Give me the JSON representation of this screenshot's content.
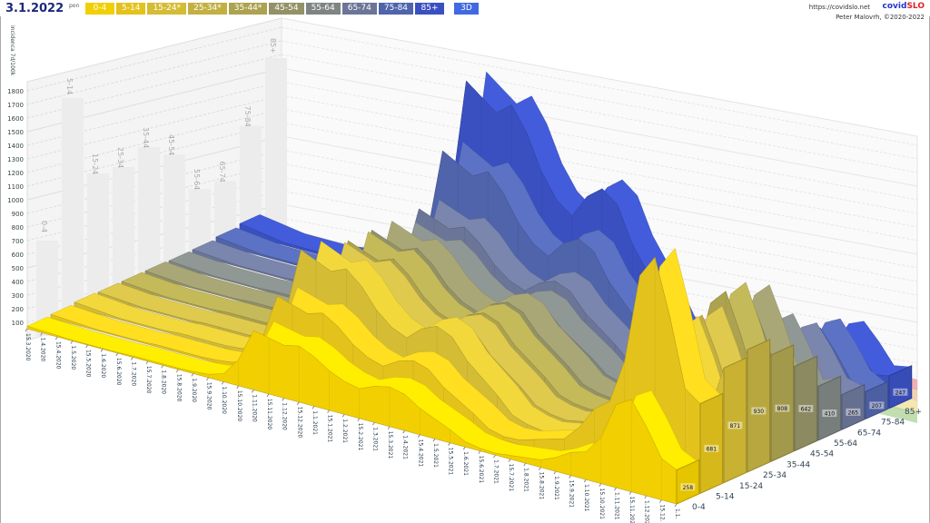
{
  "header": {
    "date": "3.1.2022",
    "day": "pon",
    "url": "https://covidslo.net",
    "brand_a": "covid",
    "brand_b": "SLO",
    "author": "Peter Malovrh, ©2020-2022",
    "mode_button": "3D"
  },
  "legend": [
    {
      "label": "0-4",
      "color": "#f2cf00"
    },
    {
      "label": "5-14",
      "color": "#e3c21c"
    },
    {
      "label": "15-24*",
      "color": "#d4bc34"
    },
    {
      "label": "25-34*",
      "color": "#c2b043"
    },
    {
      "label": "35-44*",
      "color": "#aca24f"
    },
    {
      "label": "45-54",
      "color": "#939267"
    },
    {
      "label": "55-64",
      "color": "#7e8582"
    },
    {
      "label": "65-74",
      "color": "#6b7598"
    },
    {
      "label": "75-84",
      "color": "#5064ab"
    },
    {
      "label": "85+",
      "color": "#3a50c0"
    }
  ],
  "chart_data": {
    "type": "area",
    "ylabel": "incidenca 7d/100k",
    "ylim": [
      0,
      1800
    ],
    "yticks": [
      100,
      200,
      300,
      400,
      500,
      600,
      700,
      800,
      900,
      1000,
      1100,
      1200,
      1300,
      1400,
      1500,
      1600,
      1700,
      1800
    ],
    "x": [
      "15.3.2020",
      "1.4.2020",
      "15.4.2020",
      "1.5.2020",
      "15.5.2020",
      "1.6.2020",
      "15.6.2020",
      "1.7.2020",
      "15.7.2020",
      "1.8.2020",
      "15.8.2020",
      "1.9.2020",
      "15.9.2020",
      "1.10.2020",
      "15.10.2020",
      "1.11.2020",
      "15.11.2020",
      "1.12.2020",
      "15.12.2020",
      "1.1.2021",
      "15.1.2021",
      "1.2.2021",
      "15.2.2021",
      "1.3.2021",
      "15.3.2021",
      "1.4.2021",
      "15.4.2021",
      "1.5.2021",
      "15.5.2021",
      "1.6.2021",
      "15.6.2021",
      "1.7.2021",
      "15.7.2021",
      "1.8.2021",
      "15.8.2021",
      "1.9.2021",
      "15.9.2021",
      "1.10.2021",
      "15.10.2021",
      "1.11.2021",
      "15.11.2021",
      "1.12.2021",
      "15.12.",
      "1.1."
    ],
    "series": [
      {
        "name": "0-4",
        "values": [
          20,
          15,
          10,
          5,
          5,
          5,
          5,
          10,
          10,
          10,
          10,
          15,
          25,
          60,
          200,
          450,
          425,
          400,
          425,
          375,
          300,
          250,
          225,
          275,
          300,
          275,
          200,
          150,
          100,
          40,
          20,
          14,
          28,
          42,
          56,
          105,
          175,
          210,
          350,
          630,
          700,
          525,
          315,
          258
        ]
      },
      {
        "name": "5-14",
        "values": [
          28,
          21,
          14,
          7,
          7,
          7,
          7,
          14,
          14,
          14,
          14,
          21,
          35,
          84,
          280,
          630,
          595,
          560,
          595,
          525,
          420,
          350,
          315,
          385,
          420,
          385,
          280,
          210,
          140,
          56,
          28,
          34,
          68,
          102,
          136,
          255,
          425,
          510,
          850,
          1530,
          1700,
          1275,
          765,
          681
        ]
      },
      {
        "name": "15-24",
        "values": [
          40,
          30,
          20,
          10,
          10,
          10,
          10,
          20,
          20,
          20,
          20,
          30,
          50,
          120,
          400,
          900,
          850,
          800,
          850,
          750,
          600,
          500,
          450,
          550,
          600,
          550,
          400,
          300,
          200,
          80,
          40,
          22,
          44,
          66,
          88,
          165,
          275,
          330,
          550,
          990,
          1100,
          825,
          495,
          871
        ]
      },
      {
        "name": "25-34",
        "values": [
          36,
          27,
          18,
          9,
          9,
          9,
          9,
          18,
          18,
          18,
          18,
          27,
          45,
          108,
          360,
          810,
          765,
          720,
          765,
          675,
          540,
          450,
          405,
          495,
          540,
          495,
          360,
          270,
          180,
          72,
          36,
          22,
          44,
          66,
          88,
          165,
          275,
          330,
          550,
          990,
          1100,
          825,
          495,
          930
        ]
      },
      {
        "name": "35-44",
        "values": [
          36,
          27,
          18,
          9,
          9,
          9,
          9,
          18,
          18,
          18,
          18,
          27,
          45,
          108,
          360,
          810,
          765,
          720,
          765,
          675,
          540,
          450,
          405,
          495,
          540,
          495,
          360,
          270,
          180,
          72,
          36,
          24,
          48,
          72,
          96,
          180,
          300,
          360,
          600,
          1080,
          1200,
          900,
          540,
          808
        ]
      },
      {
        "name": "45-54",
        "values": [
          36,
          27,
          18,
          9,
          9,
          9,
          9,
          18,
          18,
          18,
          18,
          27,
          45,
          108,
          360,
          810,
          765,
          720,
          765,
          675,
          540,
          450,
          405,
          495,
          540,
          495,
          360,
          270,
          180,
          72,
          36,
          22,
          44,
          66,
          88,
          165,
          275,
          330,
          550,
          990,
          1100,
          825,
          495,
          642
        ]
      },
      {
        "name": "55-64",
        "values": [
          32,
          24,
          16,
          8,
          8,
          8,
          8,
          16,
          16,
          16,
          16,
          24,
          40,
          96,
          320,
          720,
          680,
          640,
          680,
          600,
          480,
          400,
          360,
          440,
          480,
          440,
          320,
          240,
          160,
          64,
          32,
          16,
          32,
          48,
          64,
          120,
          200,
          240,
          400,
          720,
          800,
          600,
          360,
          410
        ]
      },
      {
        "name": "65-74",
        "values": [
          36,
          27,
          18,
          9,
          9,
          9,
          9,
          18,
          18,
          18,
          18,
          27,
          45,
          108,
          360,
          810,
          765,
          720,
          765,
          675,
          540,
          450,
          405,
          495,
          540,
          495,
          360,
          270,
          180,
          72,
          36,
          13,
          26,
          39,
          52,
          98,
          163,
          195,
          325,
          585,
          650,
          488,
          293,
          265
        ]
      },
      {
        "name": "75-84",
        "values": [
          52,
          39,
          26,
          13,
          13,
          13,
          13,
          26,
          26,
          26,
          26,
          39,
          65,
          156,
          520,
          1170,
          1105,
          1040,
          1105,
          975,
          780,
          650,
          585,
          715,
          780,
          715,
          520,
          390,
          260,
          104,
          52,
          12,
          24,
          36,
          48,
          90,
          150,
          180,
          300,
          540,
          600,
          450,
          270,
          207
        ]
      },
      {
        "name": "85+",
        "values": [
          72,
          54,
          36,
          18,
          18,
          18,
          18,
          36,
          36,
          36,
          36,
          54,
          90,
          216,
          720,
          1620,
          1530,
          1440,
          1530,
          1350,
          1080,
          900,
          810,
          990,
          1080,
          990,
          720,
          540,
          360,
          144,
          72,
          10,
          20,
          30,
          40,
          75,
          125,
          150,
          250,
          450,
          500,
          375,
          225,
          247
        ]
      }
    ],
    "latest_labels": [
      "258",
      "681",
      "871",
      "930",
      "808",
      "642",
      "410",
      "265",
      "207",
      "247"
    ],
    "grid": true,
    "threshold_band_colors": [
      "#e89090",
      "#f0c090",
      "#f0e090",
      "#a8d090"
    ]
  }
}
